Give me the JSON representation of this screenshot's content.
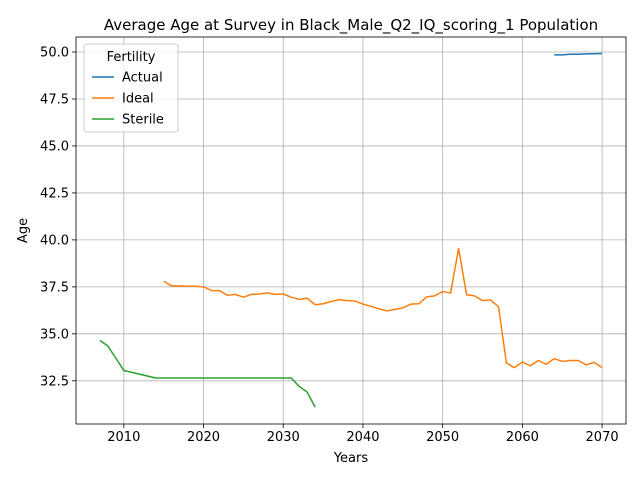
{
  "chart_data": {
    "type": "line",
    "title": "Average Age at Survey in Black_Male_Q2_IQ_scoring_1 Population",
    "xlabel": "Years",
    "ylabel": "Age",
    "xlim": [
      2004,
      2073
    ],
    "ylim": [
      30.2,
      50.8
    ],
    "xticks": [
      2010,
      2020,
      2030,
      2040,
      2050,
      2060,
      2070
    ],
    "yticks": [
      32.5,
      35.0,
      37.5,
      40.0,
      42.5,
      45.0,
      47.5,
      50.0
    ],
    "xtick_labels": [
      "2010",
      "2020",
      "2030",
      "2040",
      "2050",
      "2060",
      "2070"
    ],
    "ytick_labels": [
      "32.5",
      "35.0",
      "37.5",
      "40.0",
      "42.5",
      "45.0",
      "47.5",
      "50.0"
    ],
    "grid": true,
    "legend": {
      "title": "Fertility",
      "placement": "upper-left"
    },
    "series": [
      {
        "name": "Actual",
        "color": "#1f77b4",
        "x": [
          2064,
          2065,
          2066,
          2067,
          2068,
          2069,
          2070
        ],
        "y": [
          49.85,
          49.85,
          49.88,
          49.88,
          49.9,
          49.91,
          49.92
        ]
      },
      {
        "name": "Ideal",
        "color": "#ff7f0e",
        "x": [
          2015,
          2016,
          2017,
          2018,
          2019,
          2020,
          2021,
          2022,
          2023,
          2024,
          2025,
          2026,
          2027,
          2028,
          2029,
          2030,
          2031,
          2032,
          2033,
          2034,
          2035,
          2036,
          2037,
          2038,
          2039,
          2040,
          2041,
          2042,
          2043,
          2044,
          2045,
          2046,
          2047,
          2048,
          2049,
          2050,
          2051,
          2052,
          2053,
          2054,
          2055,
          2056,
          2057,
          2058,
          2059,
          2060,
          2061,
          2062,
          2063,
          2064,
          2065,
          2066,
          2067,
          2068,
          2069,
          2070
        ],
        "y": [
          37.8,
          37.55,
          37.55,
          37.53,
          37.53,
          37.5,
          37.3,
          37.3,
          37.05,
          37.1,
          36.95,
          37.1,
          37.12,
          37.18,
          37.1,
          37.12,
          36.95,
          36.83,
          36.9,
          36.55,
          36.6,
          36.72,
          36.82,
          36.77,
          36.75,
          36.58,
          36.47,
          36.33,
          36.22,
          36.3,
          36.38,
          36.58,
          36.6,
          36.97,
          37.02,
          37.25,
          37.17,
          39.55,
          37.08,
          37.02,
          36.77,
          36.8,
          36.45,
          33.45,
          33.2,
          33.5,
          33.3,
          33.58,
          33.38,
          33.68,
          33.53,
          33.58,
          33.58,
          33.35,
          33.48,
          33.2
        ]
      },
      {
        "name": "Sterile",
        "color": "#2ca02c",
        "x": [
          2007,
          2008,
          2009,
          2010,
          2011,
          2012,
          2013,
          2014,
          2015,
          2016,
          2017,
          2018,
          2019,
          2020,
          2021,
          2022,
          2023,
          2024,
          2025,
          2026,
          2027,
          2028,
          2029,
          2030,
          2031,
          2032,
          2033,
          2034
        ],
        "y": [
          34.65,
          34.35,
          33.7,
          33.05,
          32.95,
          32.85,
          32.75,
          32.65,
          32.65,
          32.65,
          32.65,
          32.65,
          32.65,
          32.65,
          32.65,
          32.65,
          32.65,
          32.65,
          32.65,
          32.65,
          32.65,
          32.65,
          32.65,
          32.65,
          32.65,
          32.2,
          31.9,
          31.1
        ]
      }
    ]
  }
}
